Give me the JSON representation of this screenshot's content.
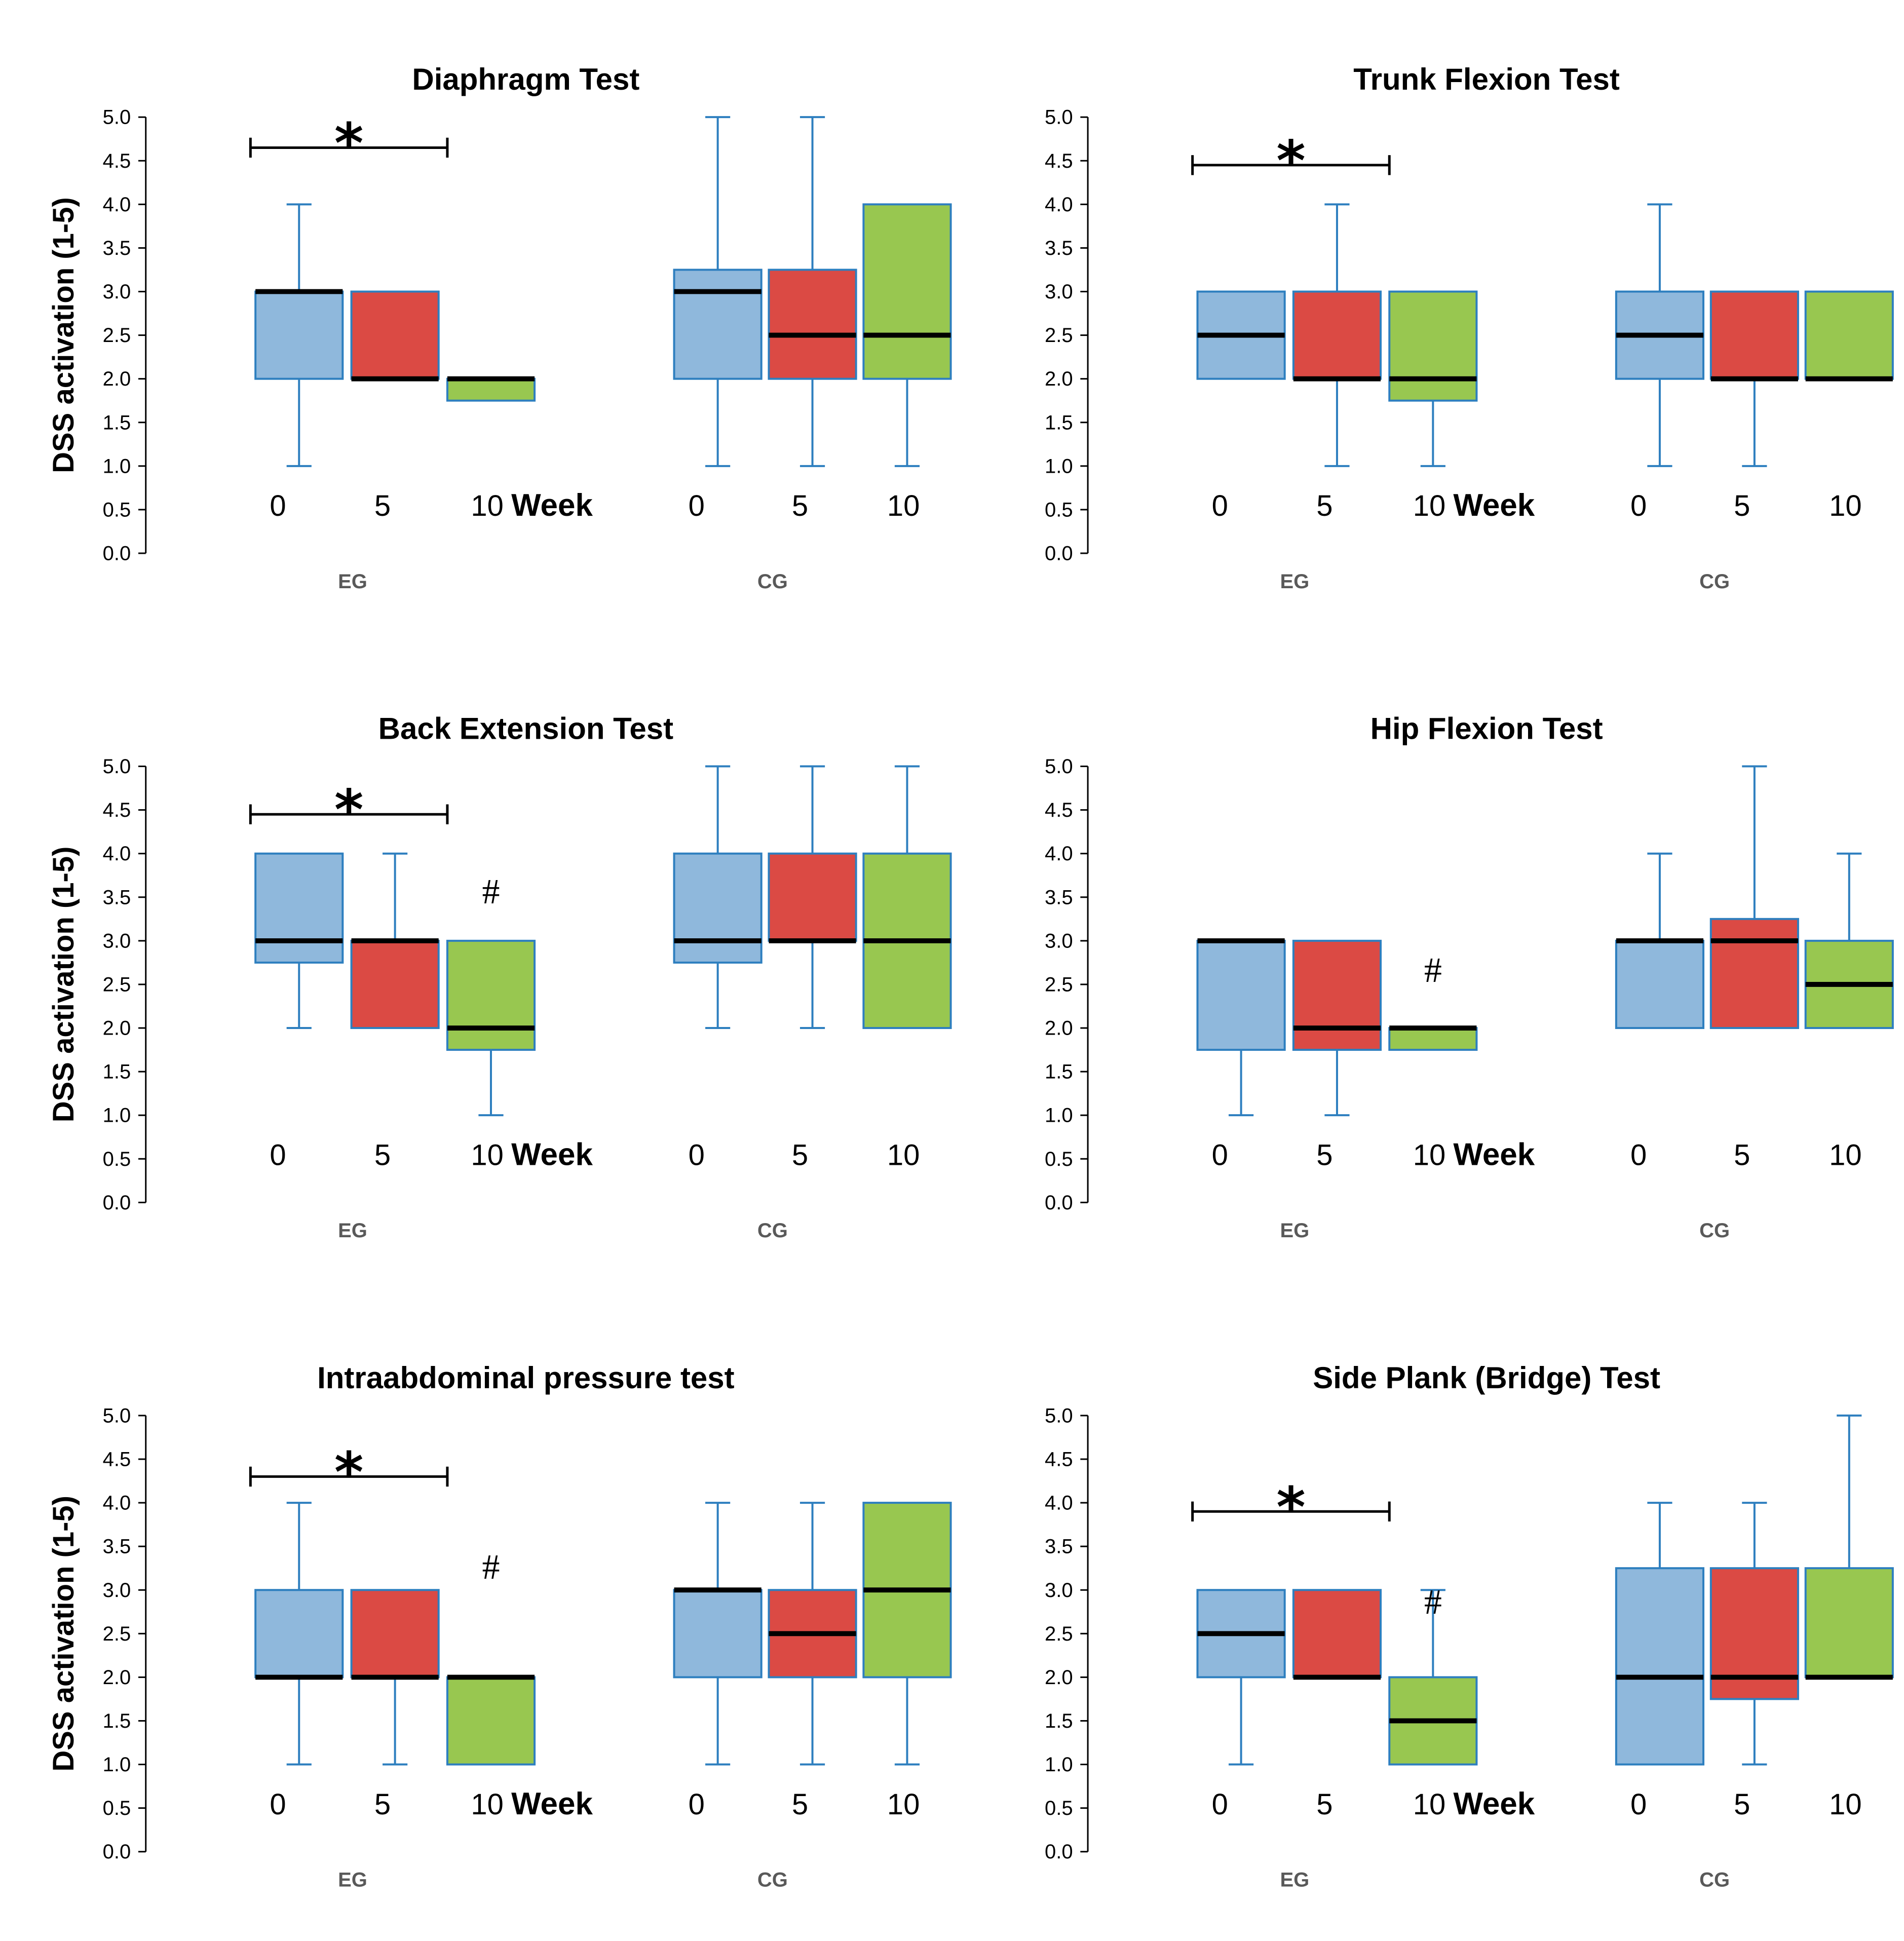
{
  "figure": {
    "y_axis_label": "DSS activation (1-5)",
    "week_label": "Week",
    "group_labels": [
      "EG",
      "CG"
    ],
    "week_ticks": [
      "0",
      "5",
      "10"
    ],
    "y_ticks": [
      "0.0",
      "0.5",
      "1.0",
      "1.5",
      "2.0",
      "2.5",
      "3.0",
      "3.5",
      "4.0",
      "4.5",
      "5.0"
    ],
    "significance_star": "*",
    "significance_hash": "#"
  },
  "colors": {
    "week0_fill": "#8fb8dc",
    "week5_fill": "#db4a44",
    "week10_fill": "#98c750",
    "box_edge": "#2e7fbf",
    "whisker": "#2e7fbf",
    "median": "#000000"
  },
  "chart_data": [
    {
      "type": "box",
      "title": "Diaphragm Test",
      "ylabel": "DSS activation (1-5)",
      "ylim": [
        0,
        5
      ],
      "groups": [
        "EG",
        "CG"
      ],
      "weeks": [
        "0",
        "5",
        "10"
      ],
      "boxes": {
        "EG": [
          {
            "week": "0",
            "min": 1,
            "q1": 2,
            "median": 3,
            "q3": 3,
            "max": 4
          },
          {
            "week": "5",
            "min": 2,
            "q1": 2,
            "median": 2,
            "q3": 3,
            "max": 3
          },
          {
            "week": "10",
            "min": 1.75,
            "q1": 1.75,
            "median": 2,
            "q3": 2,
            "max": 2
          }
        ],
        "CG": [
          {
            "week": "0",
            "min": 1,
            "q1": 2,
            "median": 3,
            "q3": 3.25,
            "max": 5
          },
          {
            "week": "5",
            "min": 1,
            "q1": 2,
            "median": 2.5,
            "q3": 3.25,
            "max": 5
          },
          {
            "week": "10",
            "min": 1,
            "q1": 2,
            "median": 2.5,
            "q3": 4,
            "max": 4
          }
        ]
      },
      "annotations": {
        "star": {
          "group": "EG",
          "from_week": "0",
          "to_week": "10",
          "text": "*",
          "level": 4.65
        },
        "hash": null
      }
    },
    {
      "type": "box",
      "title": "Trunk Flexion Test",
      "ylabel": "",
      "ylim": [
        0,
        5
      ],
      "groups": [
        "EG",
        "CG"
      ],
      "weeks": [
        "0",
        "5",
        "10"
      ],
      "boxes": {
        "EG": [
          {
            "week": "0",
            "min": 2,
            "q1": 2,
            "median": 2.5,
            "q3": 3,
            "max": 3
          },
          {
            "week": "5",
            "min": 1,
            "q1": 2,
            "median": 2,
            "q3": 3,
            "max": 4
          },
          {
            "week": "10",
            "min": 1,
            "q1": 1.75,
            "median": 2,
            "q3": 3,
            "max": 3
          }
        ],
        "CG": [
          {
            "week": "0",
            "min": 1,
            "q1": 2,
            "median": 2.5,
            "q3": 3,
            "max": 4
          },
          {
            "week": "5",
            "min": 1,
            "q1": 2,
            "median": 2,
            "q3": 3,
            "max": 3
          },
          {
            "week": "10",
            "min": 2,
            "q1": 2,
            "median": 2,
            "q3": 3,
            "max": 3
          }
        ]
      },
      "annotations": {
        "star": {
          "group": "EG",
          "from_week": "0",
          "to_week": "10",
          "text": "*",
          "level": 4.45
        },
        "hash": null
      }
    },
    {
      "type": "box",
      "title": "Back Extension Test",
      "ylabel": "DSS activation (1-5)",
      "ylim": [
        0,
        5
      ],
      "groups": [
        "EG",
        "CG"
      ],
      "weeks": [
        "0",
        "5",
        "10"
      ],
      "boxes": {
        "EG": [
          {
            "week": "0",
            "min": 2,
            "q1": 2.75,
            "median": 3,
            "q3": 4,
            "max": 4
          },
          {
            "week": "5",
            "min": 2,
            "q1": 2,
            "median": 3,
            "q3": 3,
            "max": 4
          },
          {
            "week": "10",
            "min": 1,
            "q1": 1.75,
            "median": 2,
            "q3": 3,
            "max": 3
          }
        ],
        "CG": [
          {
            "week": "0",
            "min": 2,
            "q1": 2.75,
            "median": 3,
            "q3": 4,
            "max": 5
          },
          {
            "week": "5",
            "min": 2,
            "q1": 3,
            "median": 3,
            "q3": 4,
            "max": 5
          },
          {
            "week": "10",
            "min": 2,
            "q1": 2,
            "median": 3,
            "q3": 4,
            "max": 5
          }
        ]
      },
      "annotations": {
        "star": {
          "group": "EG",
          "from_week": "0",
          "to_week": "10",
          "text": "*",
          "level": 4.45
        },
        "hash": {
          "group": "EG",
          "week": "10",
          "text": "#",
          "level": 3.6
        }
      }
    },
    {
      "type": "box",
      "title": "Hip Flexion Test",
      "ylabel": "",
      "ylim": [
        0,
        5
      ],
      "groups": [
        "EG",
        "CG"
      ],
      "weeks": [
        "0",
        "5",
        "10"
      ],
      "boxes": {
        "EG": [
          {
            "week": "0",
            "min": 1,
            "q1": 1.75,
            "median": 3,
            "q3": 3,
            "max": 3
          },
          {
            "week": "5",
            "min": 1,
            "q1": 1.75,
            "median": 2,
            "q3": 3,
            "max": 3
          },
          {
            "week": "10",
            "min": 1.75,
            "q1": 1.75,
            "median": 2,
            "q3": 2,
            "max": 2
          }
        ],
        "CG": [
          {
            "week": "0",
            "min": 2,
            "q1": 2,
            "median": 3,
            "q3": 3,
            "max": 4
          },
          {
            "week": "5",
            "min": 2,
            "q1": 2,
            "median": 3,
            "q3": 3.25,
            "max": 5
          },
          {
            "week": "10",
            "min": 2,
            "q1": 2,
            "median": 2.5,
            "q3": 3,
            "max": 4
          }
        ]
      },
      "annotations": {
        "star": null,
        "hash": {
          "group": "EG",
          "week": "10",
          "text": "#",
          "level": 2.7
        }
      }
    },
    {
      "type": "box",
      "title": "Intraabdominal pressure test",
      "ylabel": "DSS activation (1-5)",
      "ylim": [
        0,
        5
      ],
      "groups": [
        "EG",
        "CG"
      ],
      "weeks": [
        "0",
        "5",
        "10"
      ],
      "boxes": {
        "EG": [
          {
            "week": "0",
            "min": 1,
            "q1": 2,
            "median": 2,
            "q3": 3,
            "max": 4
          },
          {
            "week": "5",
            "min": 1,
            "q1": 2,
            "median": 2,
            "q3": 3,
            "max": 3
          },
          {
            "week": "10",
            "min": 1,
            "q1": 1,
            "median": 2,
            "q3": 2,
            "max": 2
          }
        ],
        "CG": [
          {
            "week": "0",
            "min": 1,
            "q1": 2,
            "median": 3,
            "q3": 3,
            "max": 4
          },
          {
            "week": "5",
            "min": 1,
            "q1": 2,
            "median": 2.5,
            "q3": 3,
            "max": 4
          },
          {
            "week": "10",
            "min": 1,
            "q1": 2,
            "median": 3,
            "q3": 4,
            "max": 4
          }
        ]
      },
      "annotations": {
        "star": {
          "group": "EG",
          "from_week": "0",
          "to_week": "10",
          "text": "*",
          "level": 4.3
        },
        "hash": {
          "group": "EG",
          "week": "10",
          "text": "#",
          "level": 3.3
        }
      }
    },
    {
      "type": "box",
      "title": "Side Plank (Bridge) Test",
      "ylabel": "",
      "ylim": [
        0,
        5
      ],
      "groups": [
        "EG",
        "CG"
      ],
      "weeks": [
        "0",
        "5",
        "10"
      ],
      "boxes": {
        "EG": [
          {
            "week": "0",
            "min": 1,
            "q1": 2,
            "median": 2.5,
            "q3": 3,
            "max": 3
          },
          {
            "week": "5",
            "min": 2,
            "q1": 2,
            "median": 2,
            "q3": 3,
            "max": 3
          },
          {
            "week": "10",
            "min": 1,
            "q1": 1,
            "median": 1.5,
            "q3": 2,
            "max": 3
          }
        ],
        "CG": [
          {
            "week": "0",
            "min": 1,
            "q1": 1,
            "median": 2,
            "q3": 3.25,
            "max": 4
          },
          {
            "week": "5",
            "min": 1,
            "q1": 1.75,
            "median": 2,
            "q3": 3.25,
            "max": 4
          },
          {
            "week": "10",
            "min": 2,
            "q1": 2,
            "median": 2,
            "q3": 3.25,
            "max": 5
          }
        ]
      },
      "annotations": {
        "star": {
          "group": "EG",
          "from_week": "0",
          "to_week": "10",
          "text": "*",
          "level": 3.9
        },
        "hash": {
          "group": "EG",
          "week": "10",
          "text": "#",
          "level": 2.9
        }
      }
    }
  ]
}
